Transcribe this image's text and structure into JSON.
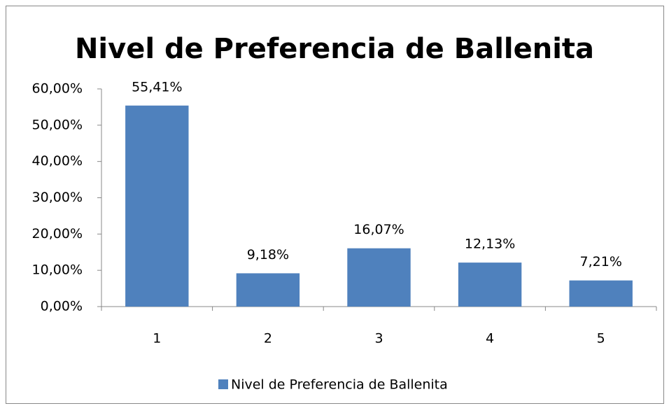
{
  "chart_data": {
    "type": "bar",
    "title": "Nivel de Preferencia de Ballenita",
    "categories": [
      "1",
      "2",
      "3",
      "4",
      "5"
    ],
    "series": [
      {
        "name": "Nivel de Preferencia de Ballenita",
        "color": "#4f81bd",
        "values": [
          55.41,
          9.18,
          16.07,
          12.13,
          7.21
        ],
        "value_labels": [
          "55,41%",
          "9,18%",
          "16,07%",
          "12,13%",
          "7,21%"
        ]
      }
    ],
    "ylim": [
      0,
      60
    ],
    "yticks": [
      {
        "value": 0,
        "label": "0,00%"
      },
      {
        "value": 10,
        "label": "10,00%"
      },
      {
        "value": 20,
        "label": "20,00%"
      },
      {
        "value": 30,
        "label": "30,00%"
      },
      {
        "value": 40,
        "label": "40,00%"
      },
      {
        "value": 50,
        "label": "50,00%"
      },
      {
        "value": 60,
        "label": "60,00%"
      }
    ],
    "grid": false,
    "legend": "bottom"
  }
}
